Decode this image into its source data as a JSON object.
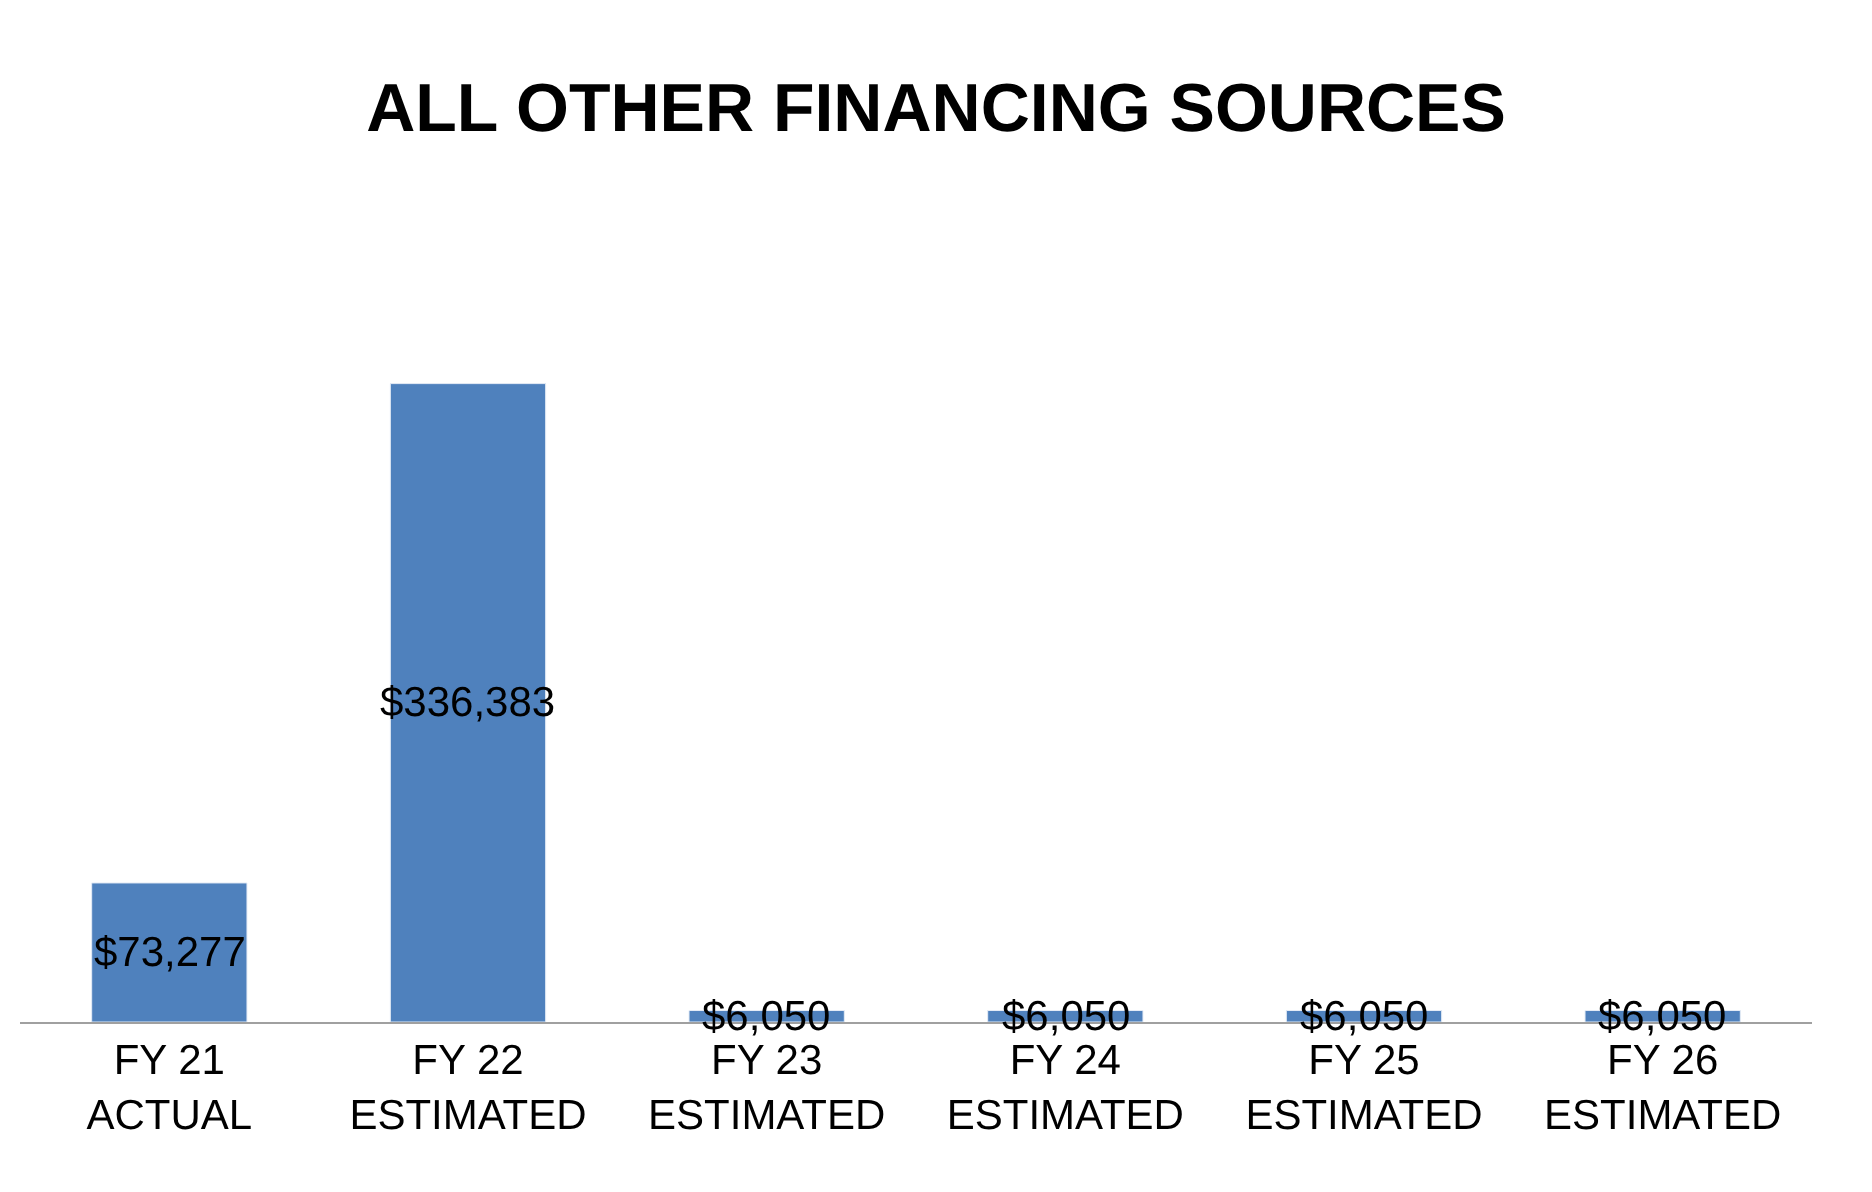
{
  "chart_data": {
    "type": "bar",
    "title": "ALL OTHER FINANCING SOURCES",
    "categories": [
      "FY 21\nACTUAL",
      "FY 22\nESTIMATED",
      "FY 23\nESTIMATED",
      "FY 24\nESTIMATED",
      "FY 25\nESTIMATED",
      "FY 26\nESTIMATED"
    ],
    "values": [
      73277,
      336383,
      6050,
      6050,
      6050,
      6050
    ],
    "value_labels": [
      "$73,277",
      "$336,383",
      "$6,050",
      "$6,050",
      "$6,050",
      "$6,050"
    ],
    "color": "#4f81bd",
    "tick_labels": "x"
  }
}
